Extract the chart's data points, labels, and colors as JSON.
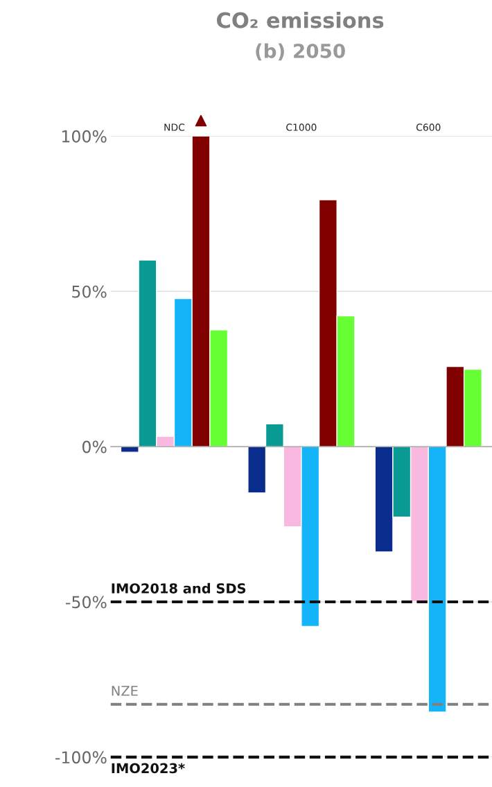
{
  "chart_data": {
    "type": "bar",
    "title": "CO₂ emissions",
    "subtitle": "(b) 2050",
    "categories": [
      "NDC",
      "C1000",
      "C600"
    ],
    "series": [
      {
        "color": "#0a2c8c",
        "values": [
          -1.8,
          -14.9,
          -33.9
        ]
      },
      {
        "color": "#0a9a94",
        "values": [
          60.1,
          7.3,
          -22.7
        ]
      },
      {
        "color": "#f9b8e0",
        "values": [
          3.3,
          -25.8,
          -49.9
        ]
      },
      {
        "color": "#14b4f8",
        "values": [
          47.7,
          -57.9,
          -85.5
        ]
      },
      {
        "color": "#800000",
        "values": [
          100,
          79.5,
          25.8
        ]
      },
      {
        "color": "#66ff33",
        "values": [
          37.6,
          42.1,
          24.9
        ]
      }
    ],
    "ylim": [
      -100,
      100
    ],
    "yticks": [
      {
        "value": -100,
        "label": "-100%"
      },
      {
        "value": -50,
        "label": "-50%"
      },
      {
        "value": 0,
        "label": "0%"
      },
      {
        "value": 50,
        "label": "50%"
      },
      {
        "value": 100,
        "label": "100%"
      }
    ],
    "grid": "y",
    "ref_lines": [
      {
        "axis": "y",
        "value": -50,
        "label": "IMO2018 and SDS",
        "color": "#111111",
        "line_style": "dashed"
      },
      {
        "axis": "y",
        "value": -83,
        "label": "NZE",
        "color": "#808080",
        "line_style": "dashed"
      },
      {
        "axis": "y",
        "value": -100,
        "label": "IMO2023*",
        "color": "#111111",
        "line_style": "dashed"
      }
    ]
  }
}
